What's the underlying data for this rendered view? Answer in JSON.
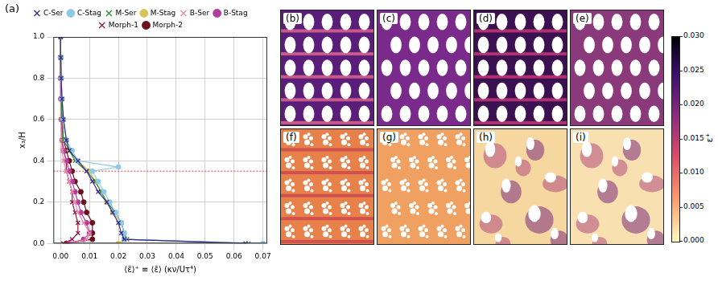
{
  "chart_data": {
    "type": "line",
    "panel_label": "(a)",
    "x_label": "⟨ε̄⟩⁺ ≡ ⟨ε̄⟩ (κν/Uτ⁴)",
    "y_label": "x₃/H",
    "xlim": [
      -0.0025,
      0.0715
    ],
    "xticks": [
      {
        "value": 0,
        "label": "0.00"
      },
      0.01,
      0.02,
      0.03,
      0.04,
      0.05,
      0.06,
      0.07
    ],
    "ylim": [
      0,
      1
    ],
    "yticks": [
      {
        "value": 0,
        "label": "0.0"
      },
      0.2,
      0.4,
      0.6,
      0.8,
      {
        "value": 1,
        "label": "1.0"
      }
    ],
    "grid": true,
    "legend": "top",
    "reference_line": {
      "y": 0.35,
      "color": "#e04040",
      "line_style": "dotted"
    },
    "series": [
      {
        "name": "C-Ser",
        "color": "#3a2a8c",
        "marker": "x",
        "y": [
          0,
          0.02,
          0.05,
          0.1,
          0.15,
          0.2,
          0.25,
          0.3,
          0.35,
          0.4,
          0.45,
          0.5,
          0.6,
          0.7,
          0.8,
          0.9,
          1.0
        ],
        "x": [
          0.064,
          0.022,
          0.021,
          0.02,
          0.018,
          0.016,
          0.013,
          0.011,
          0.009,
          0.006,
          0.003,
          0.002,
          0.001,
          0.0005,
          0.0002,
          0.0001,
          0
        ]
      },
      {
        "name": "C-Stag",
        "color": "#8ecae6",
        "marker": "circle",
        "y": [
          0,
          0.02,
          0.05,
          0.1,
          0.15,
          0.2,
          0.25,
          0.3,
          0.35,
          0.37,
          0.4,
          0.45,
          0.5,
          0.6,
          0.7,
          0.8,
          0.9,
          1.0
        ],
        "x": [
          0.07,
          0.022,
          0.022,
          0.021,
          0.019,
          0.017,
          0.015,
          0.013,
          0.011,
          0.02,
          0.006,
          0.004,
          0.002,
          0.001,
          0.0005,
          0.0002,
          0.0001,
          0
        ]
      },
      {
        "name": "M-Ser",
        "color": "#2e8b3a",
        "marker": "x",
        "y": [
          0,
          0.02,
          0.05,
          0.1,
          0.15,
          0.2,
          0.25,
          0.3,
          0.35,
          0.4,
          0.45,
          0.5,
          0.6,
          0.7,
          0.8,
          0.9,
          1.0
        ],
        "x": [
          0.065,
          0.023,
          0.022,
          0.021,
          0.019,
          0.016,
          0.014,
          0.012,
          0.009,
          0.005,
          0.003,
          0.001,
          0.0005,
          0.0002,
          0.0001,
          0,
          0
        ]
      },
      {
        "name": "M-Stag",
        "color": "#d8c25a",
        "marker": "circle",
        "y": [
          0,
          0.02,
          0.05,
          0.1,
          0.15,
          0.2,
          0.25,
          0.3,
          0.35,
          0.4,
          0.45,
          0.5,
          0.6,
          0.7,
          0.8,
          0.9,
          1.0
        ],
        "x": [
          0.02,
          0.022,
          0.022,
          0.021,
          0.018,
          0.016,
          0.014,
          0.012,
          0.01,
          0.006,
          0.003,
          0.002,
          0.001,
          0.0005,
          0.0002,
          0.0001,
          0
        ]
      },
      {
        "name": "B-Ser",
        "color": "#e88aa8",
        "marker": "x",
        "y": [
          0,
          0.02,
          0.05,
          0.1,
          0.15,
          0.2,
          0.25,
          0.3,
          0.35,
          0.4,
          0.45,
          0.5,
          0.6,
          0.7,
          0.8,
          0.9,
          1.0
        ],
        "x": [
          0.004,
          0.009,
          0.01,
          0.008,
          0.006,
          0.005,
          0.004,
          0.003,
          0.002,
          0.001,
          0.0005,
          0.0003,
          0.0001,
          0,
          0,
          0,
          0
        ]
      },
      {
        "name": "B-Stag",
        "color": "#b43c9e",
        "marker": "circle",
        "y": [
          0,
          0.02,
          0.05,
          0.1,
          0.15,
          0.2,
          0.25,
          0.3,
          0.35,
          0.4,
          0.45,
          0.5,
          0.6,
          0.7,
          0.8,
          0.9,
          1.0
        ],
        "x": [
          0.003,
          0.008,
          0.01,
          0.009,
          0.007,
          0.006,
          0.005,
          0.004,
          0.003,
          0.002,
          0.001,
          0.0005,
          0.0002,
          0.0001,
          0,
          0,
          0
        ]
      },
      {
        "name": "Morph-1",
        "color": "#8b1a4a",
        "marker": "x",
        "y": [
          0,
          0.02,
          0.05,
          0.1,
          0.15,
          0.2,
          0.25,
          0.3,
          0.35,
          0.4,
          0.45,
          0.5,
          0.6,
          0.7,
          0.8,
          0.9,
          1.0
        ],
        "x": [
          0.001,
          0.004,
          0.006,
          0.006,
          0.005,
          0.004,
          0.004,
          0.003,
          0.002,
          0.002,
          0.001,
          0.0005,
          0.0003,
          0.0002,
          0.0001,
          0,
          0
        ]
      },
      {
        "name": "Morph-2",
        "color": "#6b0f1a",
        "marker": "circle",
        "y": [
          0,
          0.02,
          0.05,
          0.1,
          0.15,
          0.2,
          0.25,
          0.3,
          0.35,
          0.4,
          0.45,
          0.5,
          0.6,
          0.7,
          0.8,
          0.9,
          1.0
        ],
        "x": [
          0.002,
          0.011,
          0.011,
          0.011,
          0.009,
          0.008,
          0.007,
          0.005,
          0.004,
          0.003,
          0.002,
          0.001,
          0.0005,
          0.0002,
          0.0001,
          0,
          0
        ]
      }
    ]
  },
  "panels": [
    {
      "label": "(b)"
    },
    {
      "label": "(c)"
    },
    {
      "label": "(d)"
    },
    {
      "label": "(e)"
    },
    {
      "label": "(f)"
    },
    {
      "label": "(g)"
    },
    {
      "label": "(h)"
    },
    {
      "label": "(i)"
    }
  ],
  "colorbar": {
    "label": "ε⁺",
    "range": [
      0,
      0.03
    ],
    "ticks": [
      {
        "value": 0,
        "label": "0.000"
      },
      0.005,
      {
        "value": 0.01,
        "label": "0.010"
      },
      0.015,
      {
        "value": 0.02,
        "label": "0.020"
      },
      0.025,
      {
        "value": 0.03,
        "label": "0.030"
      }
    ]
  }
}
